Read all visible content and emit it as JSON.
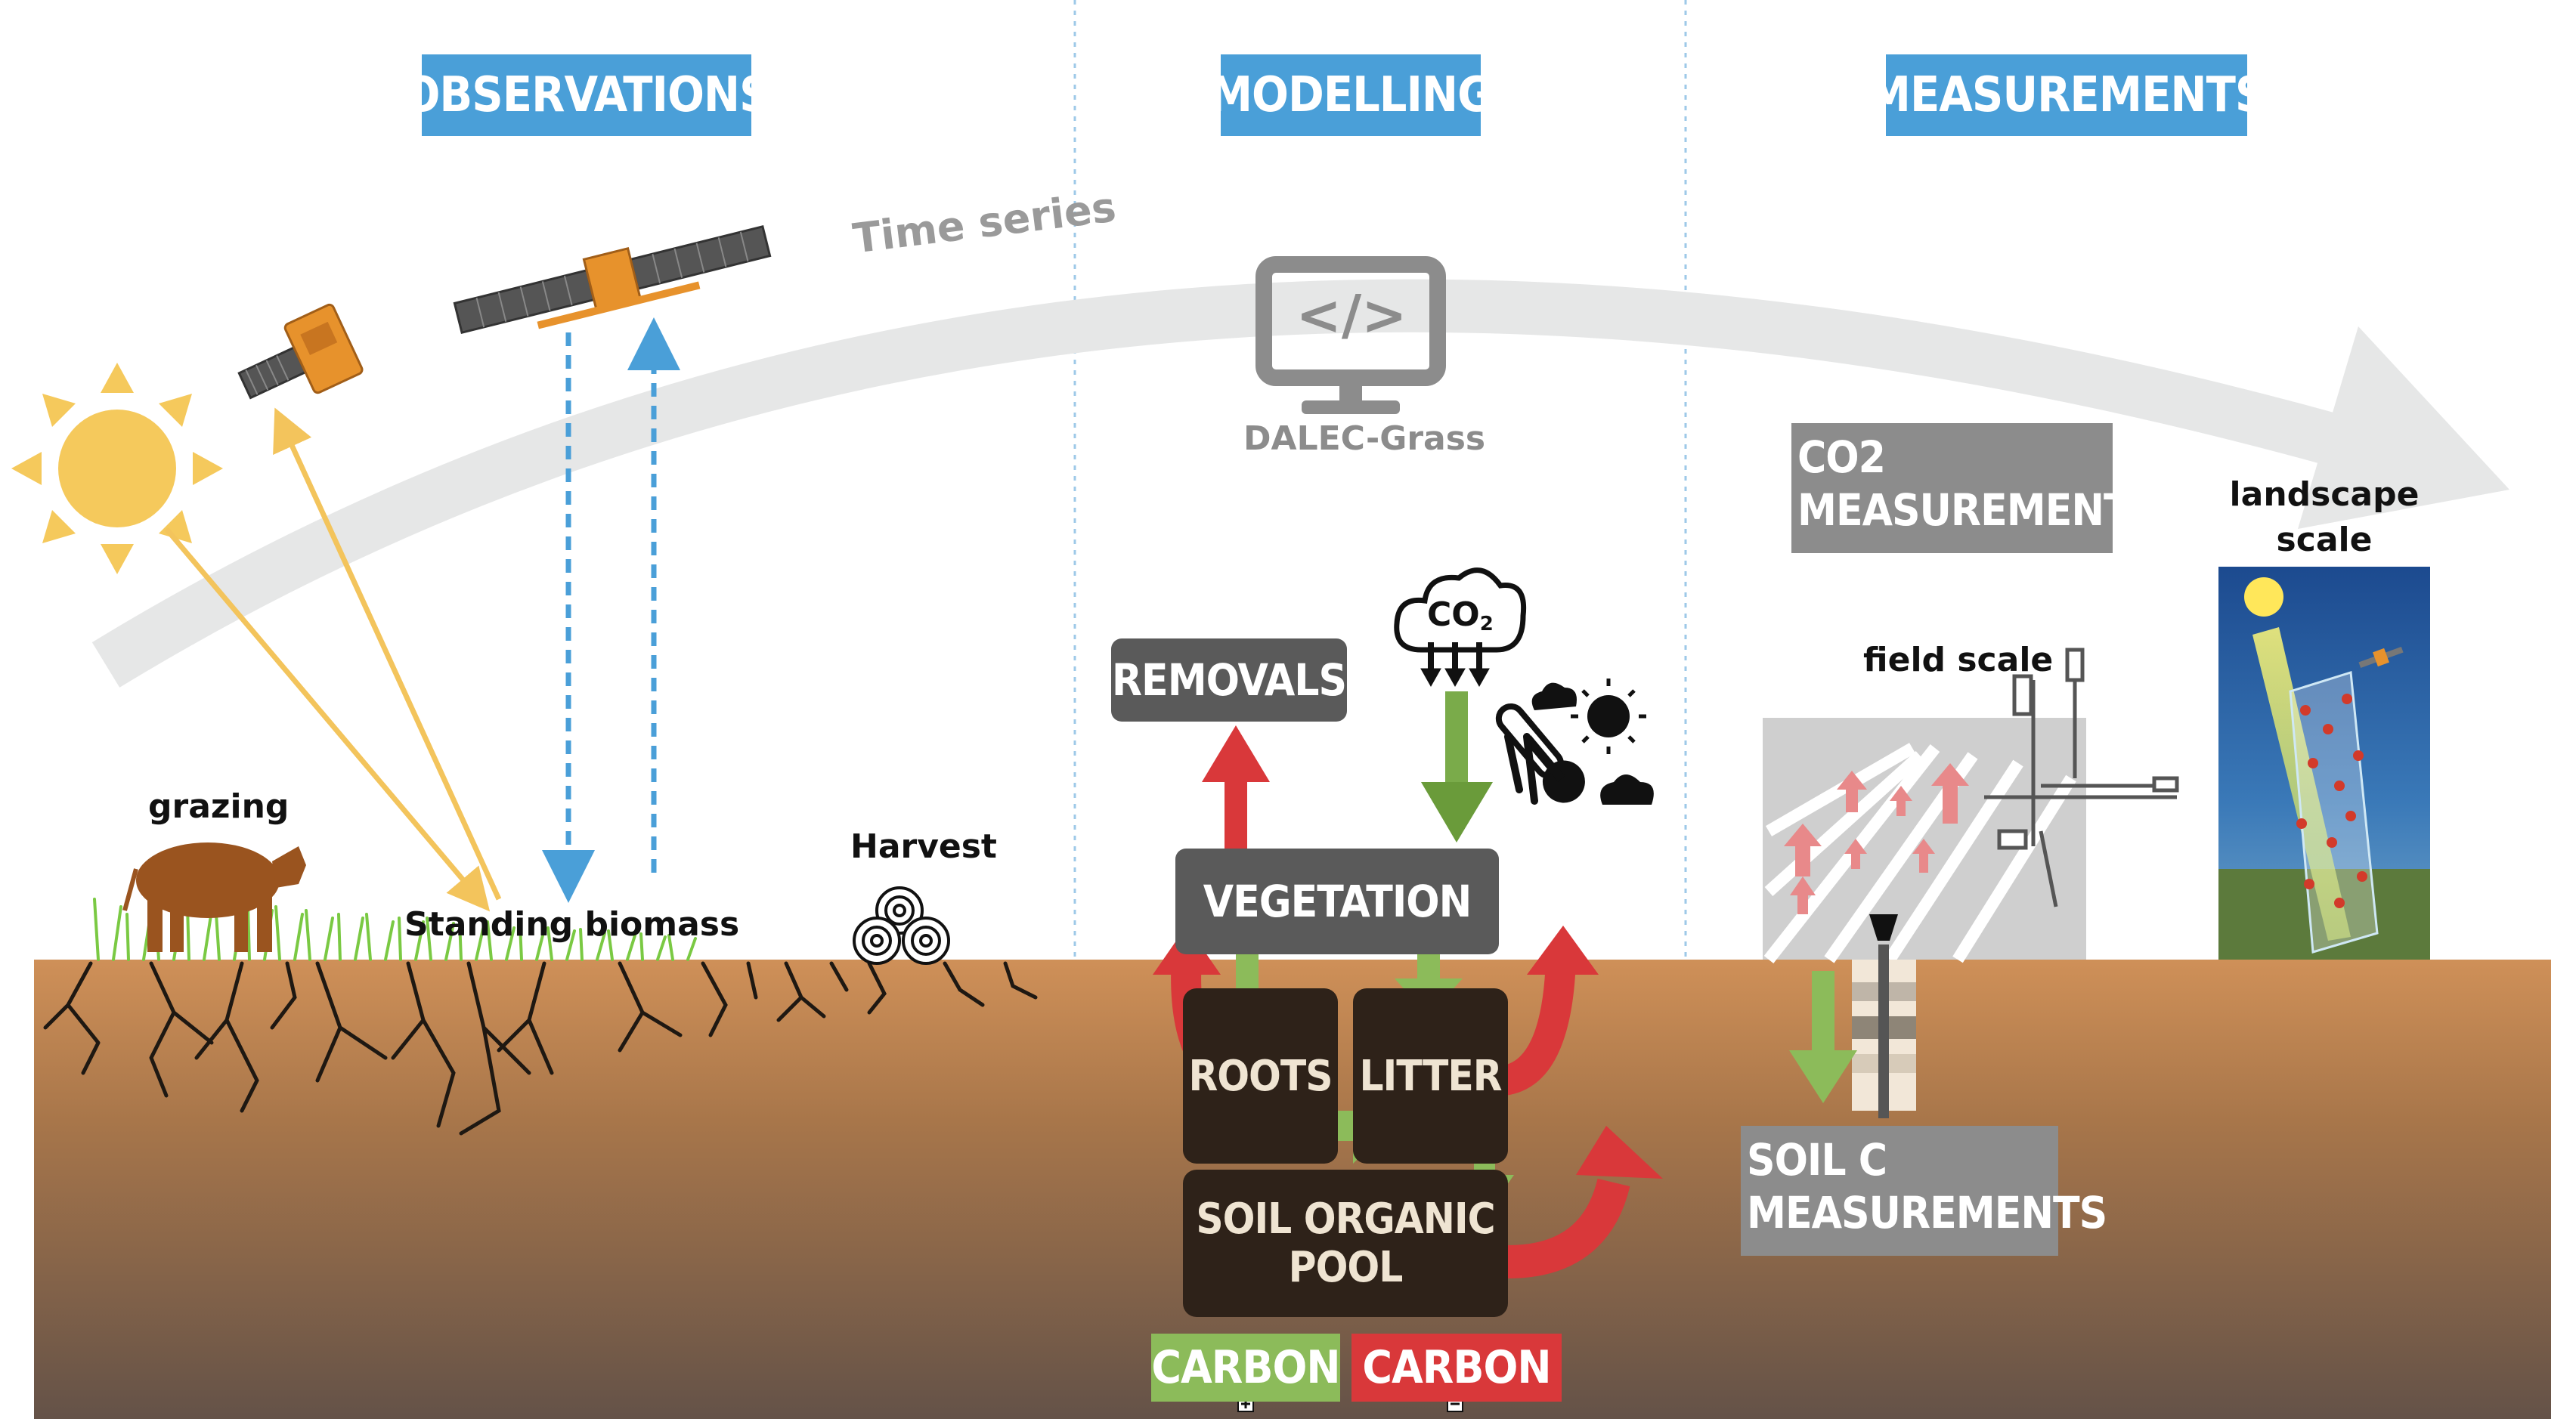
{
  "headers": {
    "observations": "OBSERVATIONS",
    "modelling": "MODELLING",
    "measurements": "MEASUREMENTS"
  },
  "time_series": "Time series",
  "model": {
    "name": "DALEC-Grass",
    "code_symbol": "</>"
  },
  "observations": {
    "grazing": "grazing",
    "standing_biomass": "Standing biomass",
    "harvest": "Harvest"
  },
  "model_boxes": {
    "removals": "REMOVALS",
    "vegetation": "VEGETATION",
    "roots": "ROOTS",
    "litter": "LITTER",
    "soil_organic_pool_line1": "SOIL ORGANIC",
    "soil_organic_pool_line2": "POOL"
  },
  "co2_cloud": {
    "label": "CO",
    "subscript": "2"
  },
  "legend": {
    "carbon_in": "CARBON",
    "carbon_out": "CARBON",
    "carbon_in_sign": "+",
    "carbon_out_sign": "−",
    "carbon_in_color": "#8cbb5a",
    "carbon_out_color": "#d9383a"
  },
  "measurements": {
    "co2_line1": "CO2",
    "co2_line2": "MEASUREMENTS",
    "field_scale": "field scale",
    "landscape_scale_line1": "landscape",
    "landscape_scale_line2": "scale",
    "soil_c_line1": "SOIL C",
    "soil_c_line2": "MEASUREMENTS"
  },
  "colors": {
    "header_blue": "#4a9fd8",
    "arrow_green": "#8cbb5a",
    "arrow_red": "#d9383a",
    "soil_top": "#c98d55",
    "soil_bottom": "#6e5749",
    "sun": "#f5c95c",
    "panel_grey": "#8c8c8c"
  }
}
